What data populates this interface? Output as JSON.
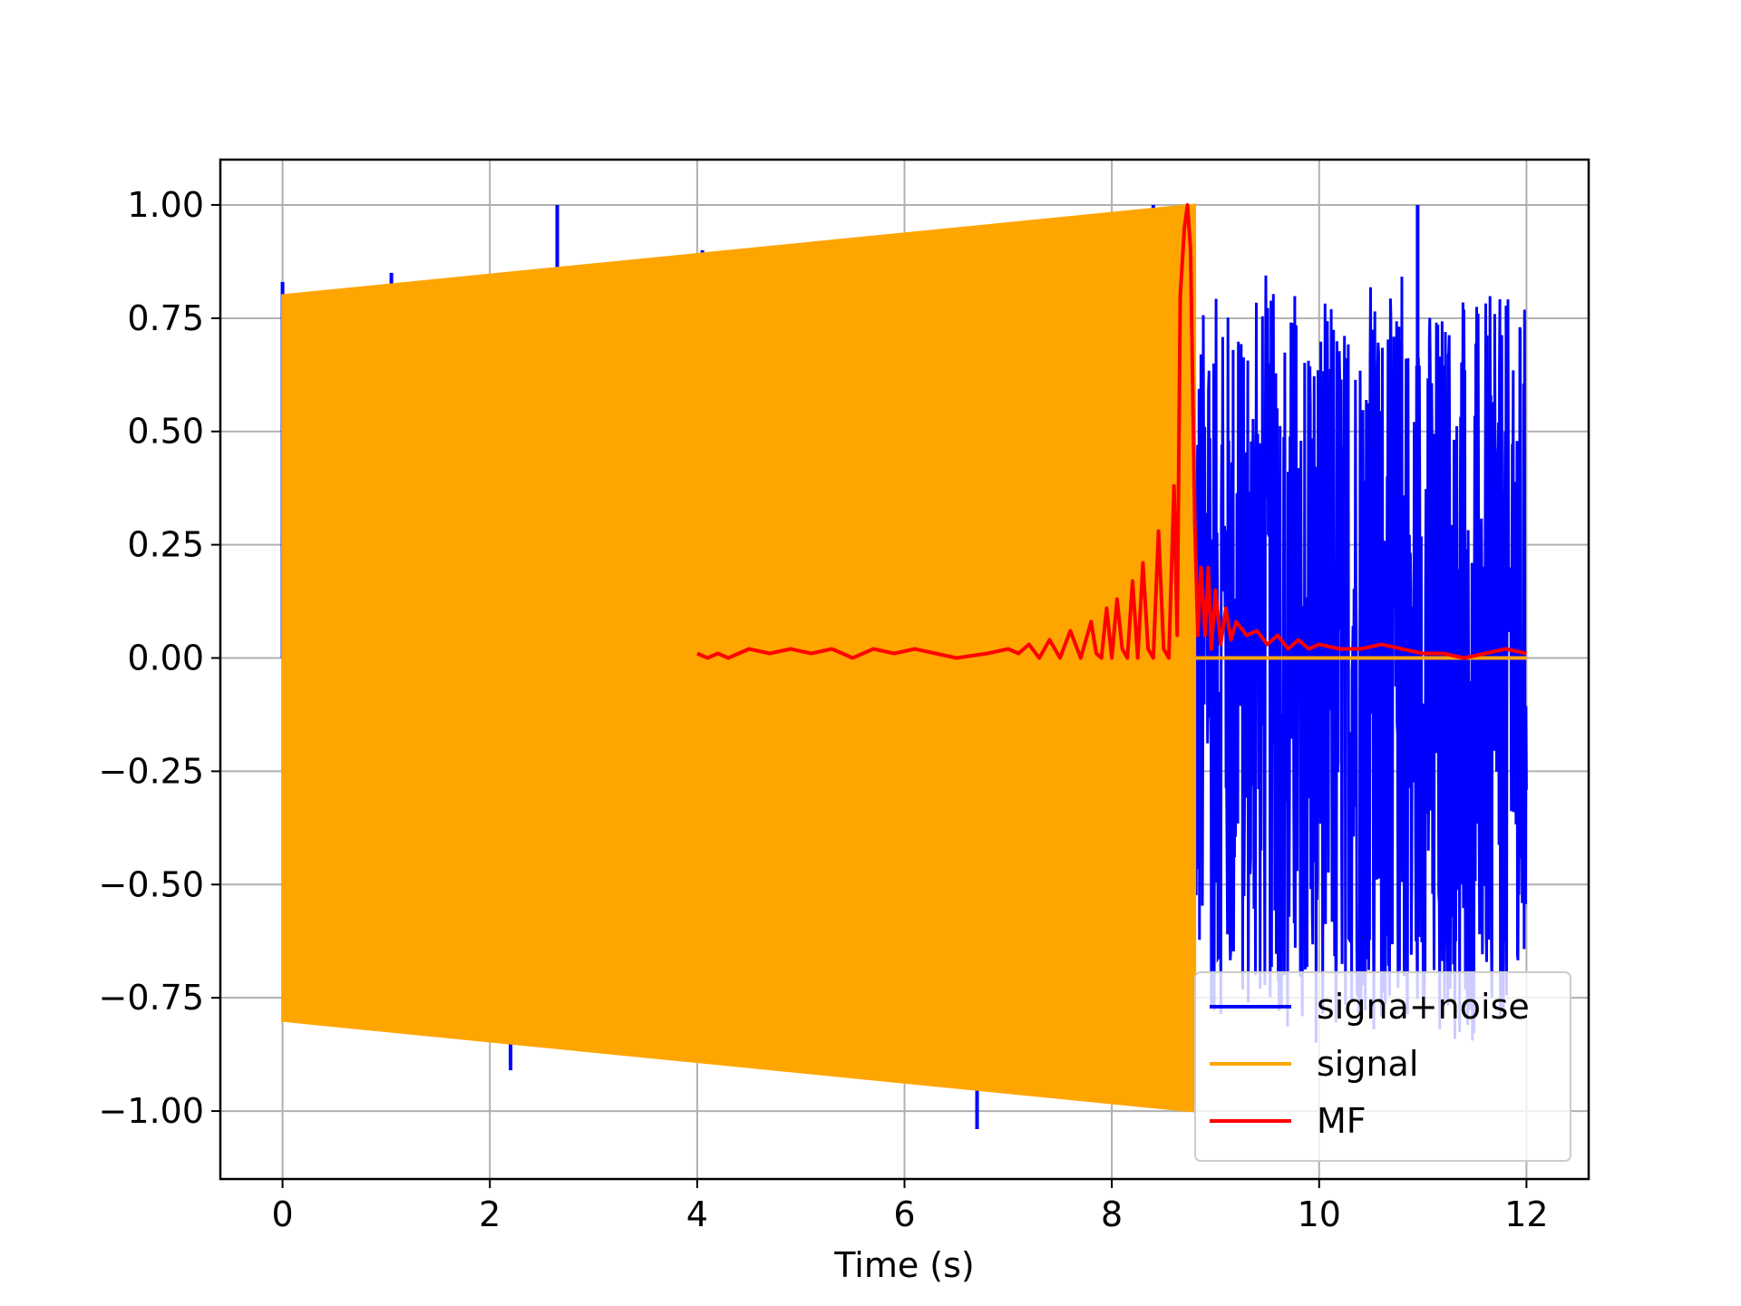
{
  "chart_data": {
    "type": "line",
    "title": "",
    "xlabel": "Time (s)",
    "ylabel": "",
    "xlim": [
      -0.6,
      12.6
    ],
    "ylim": [
      -1.15,
      1.1
    ],
    "xticks": [
      0,
      2,
      4,
      6,
      8,
      10,
      12
    ],
    "xtick_labels": [
      "0",
      "2",
      "4",
      "6",
      "8",
      "10",
      "12"
    ],
    "yticks": [
      1.0,
      0.75,
      0.5,
      0.25,
      0.0,
      -0.25,
      -0.5,
      -0.75,
      -1.0
    ],
    "ytick_labels": [
      "1.00",
      "0.75",
      "0.50",
      "0.25",
      "0.00",
      "−0.25",
      "−0.50",
      "−0.75",
      "−1.00"
    ],
    "grid": true,
    "legend_position": "lower right",
    "series": [
      {
        "name": "signa+noise",
        "color": "#0000ff",
        "kind": "noisy signal",
        "x_range": [
          0,
          12
        ],
        "noise_only_after": 8.8,
        "noise_envelope": [
          -0.8,
          0.8
        ],
        "spikes": [
          {
            "x": 0.0,
            "y": 0.83
          },
          {
            "x": 1.05,
            "y": 0.85
          },
          {
            "x": 2.2,
            "y": -0.91
          },
          {
            "x": 2.65,
            "y": 1.0
          },
          {
            "x": 4.05,
            "y": 0.9
          },
          {
            "x": 4.7,
            "y": 0.89
          },
          {
            "x": 4.7,
            "y": -0.89
          },
          {
            "x": 6.2,
            "y": 0.94
          },
          {
            "x": 6.7,
            "y": -1.04
          },
          {
            "x": 7.95,
            "y": -0.97
          },
          {
            "x": 8.4,
            "y": 1.0
          },
          {
            "x": 10.95,
            "y": 1.0
          }
        ]
      },
      {
        "name": "signal",
        "color": "#ffa500",
        "kind": "chirp envelope",
        "x": [
          0,
          8.8
        ],
        "amplitude": [
          0.8,
          1.0
        ],
        "after": {
          "x": [
            8.8,
            12.0
          ],
          "y": 0.0
        }
      },
      {
        "name": "MF",
        "color": "#ff0000",
        "kind": "matched filter output",
        "x": [
          4.0,
          4.1,
          4.2,
          4.3,
          4.5,
          4.7,
          4.9,
          5.1,
          5.3,
          5.5,
          5.7,
          5.9,
          6.1,
          6.3,
          6.5,
          6.8,
          7.0,
          7.1,
          7.2,
          7.3,
          7.4,
          7.5,
          7.6,
          7.7,
          7.75,
          7.8,
          7.85,
          7.9,
          7.95,
          8.0,
          8.05,
          8.1,
          8.15,
          8.2,
          8.25,
          8.3,
          8.35,
          8.4,
          8.45,
          8.5,
          8.55,
          8.6,
          8.63,
          8.66,
          8.7,
          8.73,
          8.76,
          8.78,
          8.8,
          8.83,
          8.86,
          8.9,
          8.93,
          8.96,
          9.0,
          9.05,
          9.1,
          9.15,
          9.2,
          9.3,
          9.4,
          9.5,
          9.6,
          9.7,
          9.8,
          9.9,
          10.0,
          10.2,
          10.4,
          10.6,
          10.8,
          11.0,
          11.2,
          11.4,
          11.6,
          11.8,
          12.0
        ],
        "y": [
          0.01,
          0.0,
          0.01,
          0.0,
          0.02,
          0.01,
          0.02,
          0.01,
          0.02,
          0.0,
          0.02,
          0.01,
          0.02,
          0.01,
          0.0,
          0.01,
          0.02,
          0.01,
          0.03,
          0.0,
          0.04,
          0.0,
          0.06,
          0.0,
          0.04,
          0.08,
          0.01,
          0.0,
          0.11,
          0.0,
          0.13,
          0.02,
          0.0,
          0.17,
          0.0,
          0.21,
          0.02,
          0.0,
          0.28,
          0.02,
          0.0,
          0.38,
          0.05,
          0.8,
          0.95,
          1.0,
          0.9,
          0.6,
          0.3,
          0.05,
          0.2,
          0.05,
          0.2,
          0.02,
          0.15,
          0.03,
          0.11,
          0.04,
          0.08,
          0.05,
          0.06,
          0.03,
          0.05,
          0.02,
          0.04,
          0.02,
          0.03,
          0.02,
          0.02,
          0.03,
          0.02,
          0.01,
          0.01,
          0.0,
          0.01,
          0.02,
          0.01
        ]
      }
    ]
  }
}
